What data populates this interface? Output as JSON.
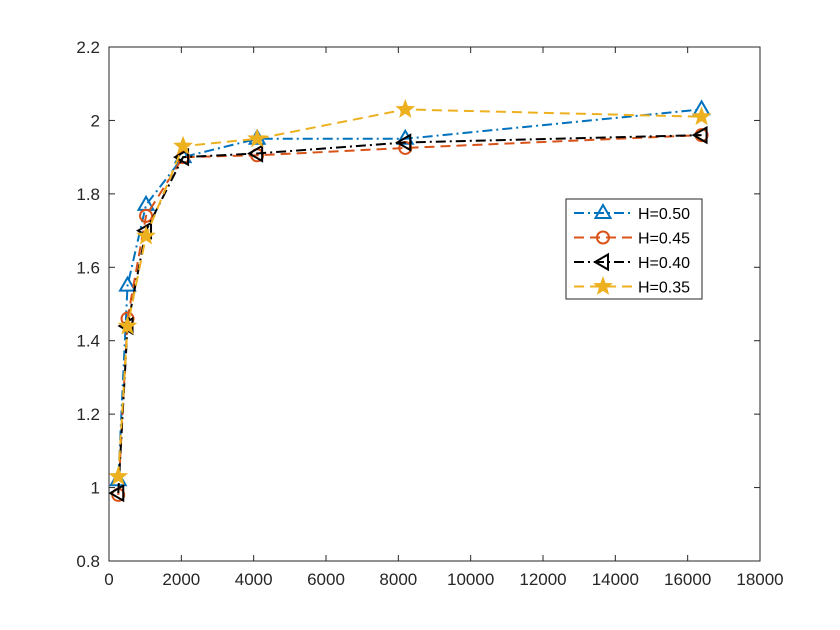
{
  "chart_data": {
    "type": "line",
    "title": "",
    "xlabel": "",
    "ylabel": "",
    "xlim": [
      0,
      18000
    ],
    "ylim": [
      0.8,
      2.2
    ],
    "xticks": [
      0,
      2000,
      4000,
      6000,
      8000,
      10000,
      12000,
      14000,
      16000,
      18000
    ],
    "yticks": [
      0.8,
      1,
      1.2,
      1.4,
      1.6,
      1.8,
      2,
      2.2
    ],
    "xtick_labels": [
      "0",
      "2000",
      "4000",
      "6000",
      "8000",
      "10000",
      "12000",
      "14000",
      "16000",
      "18000"
    ],
    "ytick_labels": [
      "0.8",
      "1",
      "1.2",
      "1.4",
      "1.6",
      "1.8",
      "2",
      "2.2"
    ],
    "grid": false,
    "legend_position": "right",
    "series": [
      {
        "name": "H=0.50",
        "color": "#0072BD",
        "marker": "triangle-up",
        "line_style": "dash-dot",
        "x": [
          256,
          512,
          1024,
          2048,
          4096,
          8192,
          16384
        ],
        "y": [
          1.02,
          1.55,
          1.77,
          1.9,
          1.95,
          1.95,
          2.03
        ]
      },
      {
        "name": "H=0.45",
        "color": "#D95319",
        "marker": "circle",
        "line_style": "dash",
        "x": [
          256,
          512,
          1024,
          2048,
          4096,
          8192,
          16384
        ],
        "y": [
          0.98,
          1.46,
          1.74,
          1.9,
          1.905,
          1.925,
          1.96
        ]
      },
      {
        "name": "H=0.40",
        "color": "#000000",
        "marker": "triangle-left",
        "line_style": "dash-dot",
        "x": [
          256,
          512,
          1024,
          2048,
          4096,
          8192,
          16384
        ],
        "y": [
          0.985,
          1.44,
          1.7,
          1.9,
          1.91,
          1.94,
          1.96
        ]
      },
      {
        "name": "H=0.35",
        "color": "#EDB120",
        "marker": "star",
        "line_style": "dash",
        "x": [
          256,
          512,
          1024,
          2048,
          4096,
          8192,
          16384
        ],
        "y": [
          1.03,
          1.44,
          1.685,
          1.93,
          1.95,
          2.03,
          2.01
        ]
      }
    ]
  }
}
